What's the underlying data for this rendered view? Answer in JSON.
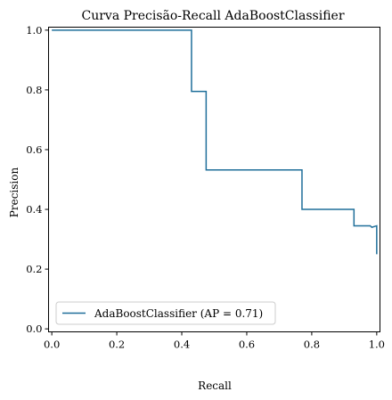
{
  "chart_data": {
    "type": "line",
    "title": "Curva Precisão-Recall AdaBoostClassifier",
    "xlabel": "Recall",
    "ylabel": "Precision",
    "xlim": [
      -0.01,
      1.01
    ],
    "ylim": [
      -0.01,
      1.01
    ],
    "xticks": [
      "0.0",
      "0.2",
      "0.4",
      "0.6",
      "0.8",
      "1.0"
    ],
    "yticks": [
      "0.0",
      "0.2",
      "0.4",
      "0.6",
      "0.8",
      "1.0"
    ],
    "grid": false,
    "legend_position": "lower-left",
    "series": [
      {
        "name": "AdaBoostClassifier (AP = 0.71)",
        "color": "#1f6f9a",
        "drawstyle": "steps",
        "points": [
          [
            0.0,
            1.0
          ],
          [
            0.43,
            1.0
          ],
          [
            0.43,
            0.795
          ],
          [
            0.475,
            0.795
          ],
          [
            0.475,
            0.532
          ],
          [
            0.77,
            0.532
          ],
          [
            0.77,
            0.4
          ],
          [
            0.93,
            0.4
          ],
          [
            0.93,
            0.345
          ],
          [
            0.98,
            0.345
          ],
          [
            0.985,
            0.34
          ],
          [
            1.0,
            0.345
          ],
          [
            1.0,
            0.25
          ]
        ]
      }
    ]
  }
}
